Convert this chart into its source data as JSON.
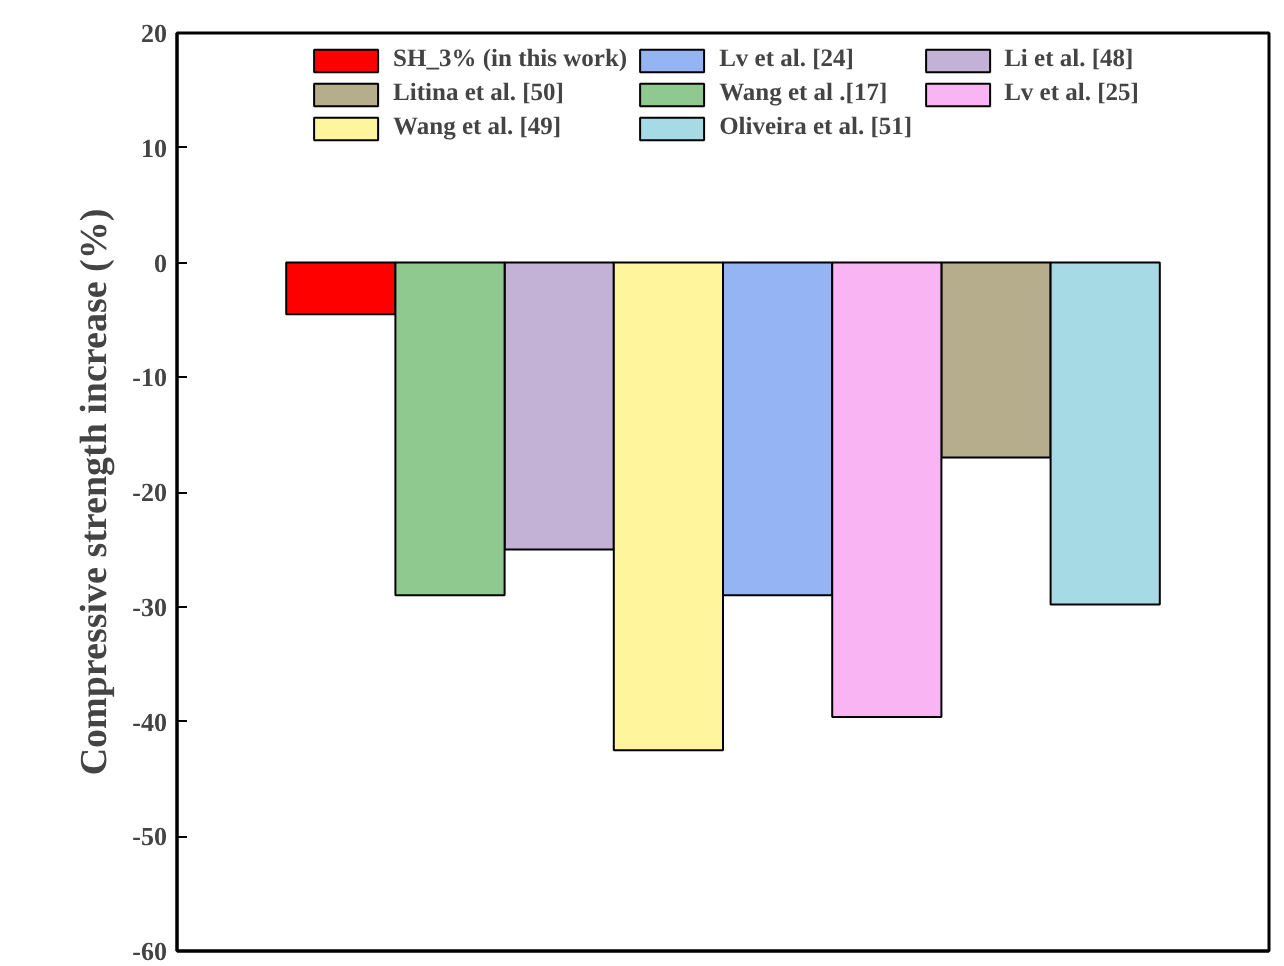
{
  "chart_data": {
    "type": "bar",
    "ylabel": "Compressive strength increase (%)",
    "categories": [
      null,
      null,
      null,
      null,
      null,
      null,
      null,
      null,
      null,
      null
    ],
    "ylim": [
      -60,
      20
    ],
    "yticks": [
      -60,
      -50,
      -40,
      -30,
      -20,
      -10,
      0,
      10,
      20
    ],
    "grid": false,
    "legend": "top",
    "tick_labels": "y",
    "series": [
      {
        "name": "SH_3% (in this work)",
        "color": "#ff0000",
        "values": [
          null,
          -4.5,
          null,
          null,
          null,
          null,
          null,
          null,
          null,
          null
        ]
      },
      {
        "name": "Lv et al. [24]",
        "color": "#94b4f4",
        "values": [
          null,
          null,
          null,
          null,
          null,
          -29,
          null,
          null,
          null,
          null
        ]
      },
      {
        "name": "Li et al. [48]",
        "color": "#c3b1d6",
        "values": [
          null,
          null,
          null,
          -25,
          null,
          null,
          null,
          null,
          null,
          null
        ]
      },
      {
        "name": "Litina et al. [50]",
        "color": "#b5ad8c",
        "values": [
          null,
          null,
          null,
          null,
          null,
          null,
          null,
          -17,
          null,
          null
        ]
      },
      {
        "name": "Wang et al .[17]",
        "color": "#90c990",
        "values": [
          null,
          null,
          -29,
          null,
          null,
          null,
          null,
          null,
          null,
          null
        ]
      },
      {
        "name": "Lv et al. [25]",
        "color": "#f9b4f4",
        "values": [
          null,
          null,
          null,
          null,
          null,
          null,
          -39.6,
          null,
          null,
          null
        ]
      },
      {
        "name": "Wang et al. [49]",
        "color": "#fff59d",
        "values": [
          null,
          null,
          null,
          null,
          -42.5,
          null,
          null,
          null,
          null,
          null
        ]
      },
      {
        "name": "Oliveira et al. [51]",
        "color": "#a6dbe6",
        "values": [
          null,
          null,
          null,
          null,
          null,
          null,
          null,
          null,
          -29.8,
          null
        ]
      }
    ]
  }
}
